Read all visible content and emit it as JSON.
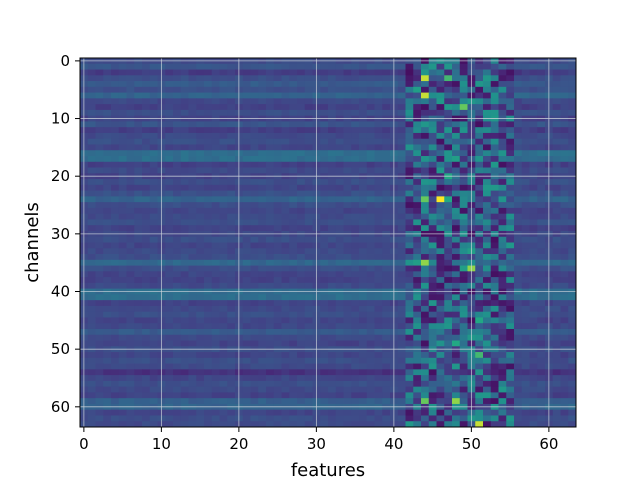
{
  "chart_data": {
    "type": "heatmap",
    "title": "",
    "xlabel": "features",
    "ylabel": "channels",
    "x_ticks": [
      0,
      10,
      20,
      30,
      40,
      50,
      60
    ],
    "y_ticks": [
      0,
      10,
      20,
      30,
      40,
      50,
      60
    ],
    "xlim": [
      -0.5,
      63.5
    ],
    "ylim": [
      63.5,
      -0.5
    ],
    "n_features": 64,
    "n_channels": 64,
    "colormap": "viridis",
    "grid": true,
    "grid_color": "#cfd6dc",
    "row_baseline": [
      0.28,
      0.33,
      0.22,
      0.3,
      0.36,
      0.31,
      0.4,
      0.27,
      0.24,
      0.3,
      0.25,
      0.33,
      0.23,
      0.28,
      0.3,
      0.26,
      0.45,
      0.45,
      0.24,
      0.28,
      0.25,
      0.3,
      0.26,
      0.31,
      0.4,
      0.3,
      0.26,
      0.28,
      0.3,
      0.25,
      0.27,
      0.3,
      0.26,
      0.28,
      0.3,
      0.42,
      0.3,
      0.26,
      0.25,
      0.28,
      0.45,
      0.45,
      0.25,
      0.28,
      0.3,
      0.26,
      0.27,
      0.36,
      0.28,
      0.25,
      0.3,
      0.26,
      0.3,
      0.28,
      0.18,
      0.26,
      0.3,
      0.28,
      0.25,
      0.38,
      0.4,
      0.26,
      0.3,
      0.28
    ],
    "hot_spots": [
      {
        "channel": 3,
        "feature": 44,
        "value": 0.95
      },
      {
        "channel": 3,
        "feature": 47,
        "value": 0.8
      },
      {
        "channel": 5,
        "feature": 43,
        "value": 0.7
      },
      {
        "channel": 6,
        "feature": 44,
        "value": 0.95
      },
      {
        "channel": 8,
        "feature": 49,
        "value": 0.85
      },
      {
        "channel": 7,
        "feature": 51,
        "value": 0.6
      },
      {
        "channel": 17,
        "feature": 48,
        "value": 0.7
      },
      {
        "channel": 17,
        "feature": 51,
        "value": 0.65
      },
      {
        "channel": 20,
        "feature": 47,
        "value": 0.75
      },
      {
        "channel": 21,
        "feature": 44,
        "value": 0.65
      },
      {
        "channel": 24,
        "feature": 46,
        "value": 1.0
      },
      {
        "channel": 24,
        "feature": 44,
        "value": 0.85
      },
      {
        "channel": 24,
        "feature": 47,
        "value": 0.75
      },
      {
        "channel": 27,
        "feature": 45,
        "value": 0.6
      },
      {
        "channel": 32,
        "feature": 45,
        "value": 0.65
      },
      {
        "channel": 33,
        "feature": 50,
        "value": 0.7
      },
      {
        "channel": 35,
        "feature": 44,
        "value": 0.9
      },
      {
        "channel": 35,
        "feature": 43,
        "value": 0.7
      },
      {
        "channel": 36,
        "feature": 50,
        "value": 0.9
      },
      {
        "channel": 36,
        "feature": 49,
        "value": 0.7
      },
      {
        "channel": 45,
        "feature": 51,
        "value": 0.75
      },
      {
        "channel": 46,
        "feature": 45,
        "value": 0.6
      },
      {
        "channel": 49,
        "feature": 48,
        "value": 0.75
      },
      {
        "channel": 51,
        "feature": 51,
        "value": 0.8
      },
      {
        "channel": 52,
        "feature": 44,
        "value": 0.55
      },
      {
        "channel": 59,
        "feature": 44,
        "value": 0.85
      },
      {
        "channel": 59,
        "feature": 48,
        "value": 0.9
      },
      {
        "channel": 60,
        "feature": 48,
        "value": 0.65
      },
      {
        "channel": 63,
        "feature": 51,
        "value": 0.95
      }
    ]
  }
}
